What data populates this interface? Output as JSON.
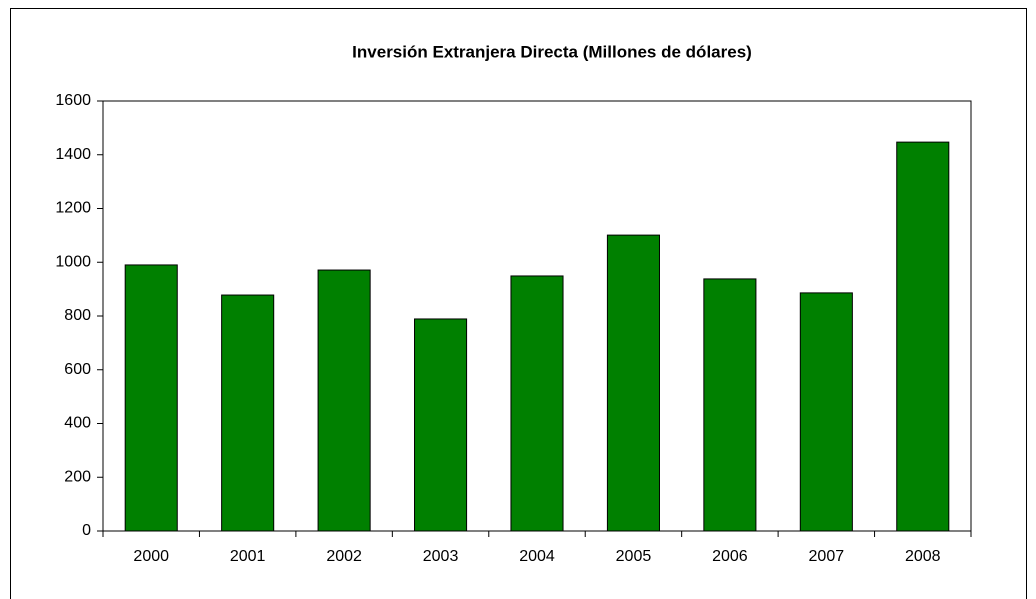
{
  "chart_data": {
    "type": "bar",
    "title": "Inversión Extranjera Directa (Millones de dólares)",
    "categories": [
      "2000",
      "2001",
      "2002",
      "2003",
      "2004",
      "2005",
      "2006",
      "2007",
      "2008"
    ],
    "values": [
      990,
      878,
      971,
      789,
      949,
      1101,
      938,
      886,
      1447
    ],
    "color": "#008000",
    "ylim": [
      0,
      1600
    ],
    "yticks": [
      0,
      200,
      400,
      600,
      800,
      1000,
      1200,
      1400,
      1600
    ],
    "grid": false
  }
}
